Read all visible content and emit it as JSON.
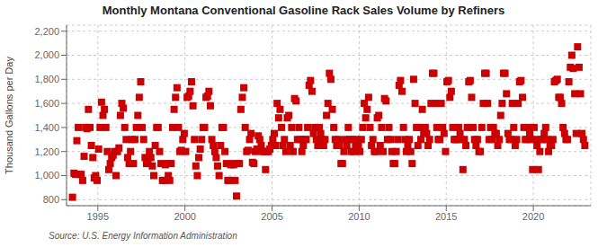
{
  "chart_data": {
    "type": "scatter",
    "title": "Monthly Montana Conventional Gasoline Rack Sales Volume by Refiners",
    "ylabel": "Thousand Gallons per Day",
    "annotations": [
      "Source: U.S. Energy Information Administration"
    ],
    "color": "#cc0000",
    "marker": "square",
    "grid": true,
    "xlim": [
      1993.2,
      2023.3
    ],
    "xticks": [
      1995,
      2000,
      2005,
      2010,
      2015,
      2020
    ],
    "ylim": [
      750,
      2250
    ],
    "yticks": [
      800,
      {
        "value": 1000,
        "label": "1,000"
      },
      {
        "value": 1200,
        "label": "1,200"
      },
      {
        "value": 1400,
        "label": "1,400"
      },
      {
        "value": 1600,
        "label": "1,600"
      },
      {
        "value": 1800,
        "label": "1,800"
      },
      {
        "value": 2000,
        "label": "2,000"
      },
      {
        "value": 2200,
        "label": "2,200"
      }
    ],
    "x": [
      1993.5416666666667,
      1993.625,
      1993.7083333333333,
      1993.7916666666667,
      1993.875,
      1993.9583333333333,
      1994.0416666666667,
      1994.125,
      1994.2083333333333,
      1994.2916666666667,
      1994.375,
      1994.4583333333333,
      1994.5416666666667,
      1994.625,
      1994.7083333333333,
      1994.7916666666667,
      1994.875,
      1994.9583333333333,
      1995.0416666666667,
      1995.125,
      1995.2083333333333,
      1995.2916666666667,
      1995.375,
      1995.4583333333333,
      1995.5416666666667,
      1995.625,
      1995.7083333333333,
      1995.7916666666667,
      1995.875,
      1995.9583333333333,
      1996.0416666666667,
      1996.125,
      1996.2083333333333,
      1996.2916666666667,
      1996.375,
      1996.4583333333333,
      1996.5416666666667,
      1996.625,
      1996.7083333333333,
      1996.7916666666667,
      1996.875,
      1996.9583333333333,
      1997.0416666666667,
      1997.125,
      1997.2083333333333,
      1997.2916666666667,
      1997.375,
      1997.4583333333333,
      1997.5416666666667,
      1997.625,
      1997.7083333333333,
      1997.7916666666667,
      1997.875,
      1997.9583333333333,
      1998.0416666666667,
      1998.125,
      1998.2083333333333,
      1998.2916666666667,
      1998.375,
      1998.4583333333333,
      1998.5416666666667,
      1998.625,
      1998.7083333333333,
      1998.7916666666667,
      1998.875,
      1998.9583333333333,
      1999.0416666666667,
      1999.125,
      1999.2083333333333,
      1999.2916666666667,
      1999.375,
      1999.4583333333333,
      1999.5416666666667,
      1999.625,
      1999.7083333333333,
      1999.7916666666667,
      1999.875,
      1999.9583333333333,
      2000.0416666666667,
      2000.125,
      2000.2083333333333,
      2000.2916666666667,
      2000.375,
      2000.4583333333333,
      2000.5416666666667,
      2000.625,
      2000.7083333333333,
      2000.7916666666667,
      2000.875,
      2000.9583333333333,
      2001.0416666666667,
      2001.125,
      2001.2083333333333,
      2001.2916666666667,
      2001.375,
      2001.4583333333333,
      2001.5416666666667,
      2001.625,
      2001.7083333333333,
      2001.7916666666667,
      2001.875,
      2001.9583333333333,
      2002.0416666666667,
      2002.125,
      2002.2083333333333,
      2002.2916666666667,
      2002.375,
      2002.4583333333333,
      2002.5416666666667,
      2002.625,
      2002.7083333333333,
      2002.7916666666667,
      2002.875,
      2002.9583333333333,
      2003.0416666666667,
      2003.125,
      2003.2083333333333,
      2003.2916666666667,
      2003.375,
      2003.4583333333333,
      2003.5416666666667,
      2003.625,
      2003.7083333333333,
      2003.7916666666667,
      2003.875,
      2003.9583333333333,
      2004.0416666666667,
      2004.125,
      2004.2083333333333,
      2004.2916666666667,
      2004.375,
      2004.4583333333333,
      2004.5416666666667,
      2004.625,
      2004.7083333333333,
      2004.7916666666667,
      2004.875,
      2004.9583333333333,
      2005.0416666666667,
      2005.125,
      2005.2083333333333,
      2005.2916666666667,
      2005.375,
      2005.4583333333333,
      2005.5416666666667,
      2005.625,
      2005.7083333333333,
      2005.7916666666667,
      2005.875,
      2005.9583333333333,
      2006.0416666666667,
      2006.125,
      2006.2083333333333,
      2006.2916666666667,
      2006.375,
      2006.4583333333333,
      2006.5416666666667,
      2006.625,
      2006.7083333333333,
      2006.7916666666667,
      2006.875,
      2006.9583333333333,
      2007.0416666666667,
      2007.125,
      2007.2083333333333,
      2007.2916666666667,
      2007.375,
      2007.4583333333333,
      2007.5416666666667,
      2007.625,
      2007.7083333333333,
      2007.7916666666667,
      2007.875,
      2007.9583333333333,
      2008.0416666666667,
      2008.125,
      2008.2083333333333,
      2008.2916666666667,
      2008.375,
      2008.4583333333333,
      2008.5416666666667,
      2008.625,
      2008.7083333333333,
      2008.7916666666667,
      2008.875,
      2008.9583333333333,
      2009.0416666666667,
      2009.125,
      2009.2083333333333,
      2009.2916666666667,
      2009.375,
      2009.4583333333333,
      2009.5416666666667,
      2009.625,
      2009.7083333333333,
      2009.7916666666667,
      2009.875,
      2009.9583333333333,
      2010.0416666666667,
      2010.125,
      2010.2083333333333,
      2010.2916666666667,
      2010.375,
      2010.4583333333333,
      2010.5416666666667,
      2010.625,
      2010.7083333333333,
      2010.7916666666667,
      2010.875,
      2010.9583333333333,
      2011.0416666666667,
      2011.125,
      2011.2083333333333,
      2011.2916666666667,
      2011.375,
      2011.4583333333333,
      2011.5416666666667,
      2011.625,
      2011.7083333333333,
      2011.7916666666667,
      2011.875,
      2011.9583333333333,
      2012.0416666666667,
      2012.125,
      2012.2083333333333,
      2012.2916666666667,
      2012.375,
      2012.4583333333333,
      2012.5416666666667,
      2012.625,
      2012.7083333333333,
      2012.7916666666667,
      2012.875,
      2012.9583333333333,
      2013.0416666666667,
      2013.125,
      2013.2083333333333,
      2013.2916666666667,
      2013.375,
      2013.4583333333333,
      2013.5416666666667,
      2013.625,
      2013.7083333333333,
      2013.7916666666667,
      2013.875,
      2013.9583333333333,
      2014.0416666666667,
      2014.125,
      2014.2083333333333,
      2014.2916666666667,
      2014.375,
      2014.4583333333333,
      2014.5416666666667,
      2014.625,
      2014.7083333333333,
      2014.7916666666667,
      2014.875,
      2014.9583333333333,
      2015.0416666666667,
      2015.125,
      2015.2083333333333,
      2015.2916666666667,
      2015.375,
      2015.4583333333333,
      2015.5416666666667,
      2015.625,
      2015.7083333333333,
      2015.7916666666667,
      2015.875,
      2015.9583333333333,
      2016.0416666666667,
      2016.125,
      2016.2083333333333,
      2016.2916666666667,
      2016.375,
      2016.4583333333333,
      2016.5416666666667,
      2016.625,
      2016.7083333333333,
      2016.7916666666667,
      2016.875,
      2016.9583333333333,
      2017.0416666666667,
      2017.125,
      2017.2083333333333,
      2017.2916666666667,
      2017.375,
      2017.4583333333333,
      2017.5416666666667,
      2017.625,
      2017.7083333333333,
      2017.7916666666667,
      2017.875,
      2017.9583333333333,
      2018.0416666666667,
      2018.125,
      2018.2083333333333,
      2018.2916666666667,
      2018.375,
      2018.4583333333333,
      2018.5416666666667,
      2018.625,
      2018.7083333333333,
      2018.7916666666667,
      2018.875,
      2018.9583333333333,
      2019.0416666666667,
      2019.125,
      2019.2083333333333,
      2019.2916666666667,
      2019.375,
      2019.4583333333333,
      2019.5416666666667,
      2019.625,
      2019.7083333333333,
      2019.7916666666667,
      2019.875,
      2019.9583333333333,
      2020.0416666666667,
      2020.125,
      2020.2083333333333,
      2020.2916666666667,
      2020.375,
      2020.4583333333333,
      2020.5416666666667,
      2020.625,
      2020.7083333333333,
      2020.7916666666667,
      2020.875,
      2020.9583333333333,
      2021.0416666666667,
      2021.125,
      2021.2083333333333,
      2021.2916666666667,
      2021.375,
      2021.4583333333333,
      2021.5416666666667,
      2021.625,
      2021.7083333333333,
      2021.7916666666667,
      2021.875,
      2021.9583333333333,
      2022.0416666666667,
      2022.125,
      2022.2083333333333,
      2022.2916666666667,
      2022.375,
      2022.4583333333333,
      2022.5416666666667,
      2022.625,
      2022.7083333333333,
      2022.7916666666667,
      2022.875,
      2022.9583333333333
    ],
    "values": [
      820,
      1020,
      1010,
      1290,
      1400,
      1010,
      1010,
      960,
      1160,
      1400,
      1390,
      1550,
      1400,
      1250,
      1150,
      980,
      1000,
      960,
      1220,
      1400,
      1610,
      1500,
      1550,
      1400,
      1200,
      1050,
      1100,
      1150,
      1170,
      1200,
      1000,
      1200,
      1230,
      1500,
      1600,
      1560,
      1400,
      1300,
      1150,
      1100,
      1200,
      1300,
      1100,
      1300,
      1400,
      1500,
      1650,
      1780,
      1400,
      1300,
      1150,
      1100,
      1120,
      1200,
      1150,
      1080,
      1000,
      1250,
      1400,
      1400,
      1200,
      1100,
      960,
      960,
      1090,
      1100,
      1000,
      960,
      1100,
      1400,
      1550,
      1650,
      1730,
      1400,
      1200,
      1210,
      1300,
      1350,
      1200,
      1650,
      1660,
      1700,
      1780,
      1580,
      1300,
      1080,
      1000,
      1150,
      1220,
      1300,
      1400,
      1400,
      1650,
      1660,
      1700,
      1580,
      1300,
      1250,
      1200,
      1150,
      1080,
      1000,
      1250,
      1400,
      1400,
      1200,
      1100,
      960,
      960,
      1090,
      1100,
      1090,
      960,
      830,
      1100,
      1100,
      1550,
      1650,
      1730,
      1400,
      1200,
      1210,
      1300,
      1350,
      1110,
      1100,
      1200,
      1220,
      1330,
      1300,
      1250,
      1200,
      1200,
      1050,
      1200,
      1200,
      1220,
      1250,
      1300,
      1350,
      1250,
      1600,
      1480,
      1550,
      1400,
      1250,
      1300,
      1200,
      1480,
      1500,
      1250,
      1400,
      1200,
      1640,
      1620,
      1300,
      1400,
      1300,
      1200,
      1250,
      1300,
      1300,
      1400,
      1750,
      1790,
      1700,
      1350,
      1400,
      1300,
      1250,
      1400,
      1350,
      1300,
      1250,
      1300,
      1500,
      1600,
      1850,
      1800,
      1550,
      1400,
      1300,
      1250,
      1300,
      1250,
      1100,
      1100,
      1200,
      1300,
      1250,
      1400,
      1300,
      1200,
      1300,
      1200,
      1250,
      1300,
      1250,
      1200,
      1300,
      1400,
      1600,
      1480,
      1550,
      1650,
      1400,
      1250,
      1300,
      1200,
      1200,
      1480,
      1500,
      1250,
      1400,
      1200,
      1640,
      1620,
      1300,
      1400,
      1300,
      1200,
      1100,
      1100,
      1200,
      1300,
      1750,
      1790,
      1700,
      1400,
      1300,
      1200,
      1250,
      1300,
      1200,
      1100,
      1800,
      1600,
      1400,
      1250,
      1400,
      1300,
      1550,
      1350,
      1400,
      1350,
      1250,
      1300,
      1600,
      1850,
      1850,
      1600,
      1400,
      1300,
      1300,
      1600,
      1400,
      1350,
      1200,
      1780,
      1790,
      1650,
      1700,
      1400,
      1300,
      1300,
      1300,
      1400,
      1350,
      1300,
      1050,
      1300,
      1250,
      1400,
      1780,
      1790,
      1650,
      1400,
      1300,
      1250,
      1300,
      1200,
      1200,
      1400,
      1600,
      1850,
      1850,
      1600,
      1300,
      1400,
      1300,
      1400,
      1350,
      1350,
      1250,
      1300,
      1500,
      1600,
      1850,
      1850,
      1680,
      1350,
      1300,
      1300,
      1600,
      1400,
      1250,
      1300,
      1600,
      1780,
      1790,
      1650,
      1400,
      1300,
      1300,
      1400,
      1350,
      1300,
      1050,
      1400,
      1300,
      1250,
      1050,
      1200,
      1300,
      1300,
      1350,
      1400,
      1300,
      1200,
      1250,
      1250,
      1300,
      1780,
      1790,
      1800,
      1650,
      1650,
      1600,
      1400,
      1350,
      1300,
      1300,
      1780,
      1900,
      2000,
      1890,
      1680,
      1350,
      2070,
      1900,
      1680,
      1350,
      1300,
      1250
    ]
  }
}
